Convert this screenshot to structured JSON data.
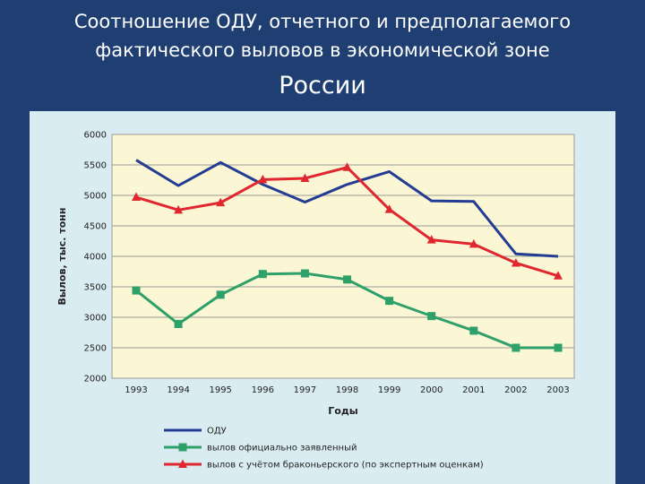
{
  "title": {
    "line1": "Соотношение ОДУ, отчетного и предполагаемого",
    "line2": "фактического выловов в экономической зоне",
    "line3": "России"
  },
  "colors": {
    "slide_background": "#1f3f73",
    "panel_background": "#d9ecf1",
    "plot_background": "#fbf6d4"
  },
  "chart_data": {
    "type": "line",
    "title": "",
    "xlabel": "Годы",
    "ylabel": "Вылов, тыс. тонн",
    "ylim": [
      2000,
      6000
    ],
    "yticks": [
      "6000",
      "5500",
      "5000",
      "4500",
      "4000",
      "3500",
      "3000",
      "2500",
      "2000"
    ],
    "grid": true,
    "legend_position": "bottom",
    "x": [
      "1993",
      "1994",
      "1995",
      "1996",
      "1997",
      "1998",
      "1999",
      "2000",
      "2001",
      "2002",
      "2003"
    ],
    "series": [
      {
        "name": "ОДУ",
        "color": "#233c94",
        "marker": "none",
        "values": [
          5580,
          5160,
          5540,
          5180,
          4890,
          5180,
          5390,
          4910,
          4900,
          4040,
          4000
        ]
      },
      {
        "name": "вылов официально заявленный",
        "color": "#2ea06a",
        "marker": "square",
        "values": [
          3440,
          2890,
          3370,
          3710,
          3720,
          3620,
          3270,
          3020,
          2780,
          2500,
          2500
        ]
      },
      {
        "name": "вылов с учётом браконьерского (по экспертным оценкам)",
        "color": "#e0272f",
        "marker": "triangle",
        "values": [
          4970,
          4760,
          4880,
          5260,
          5280,
          5460,
          4770,
          4270,
          4200,
          3890,
          3680
        ]
      }
    ]
  }
}
